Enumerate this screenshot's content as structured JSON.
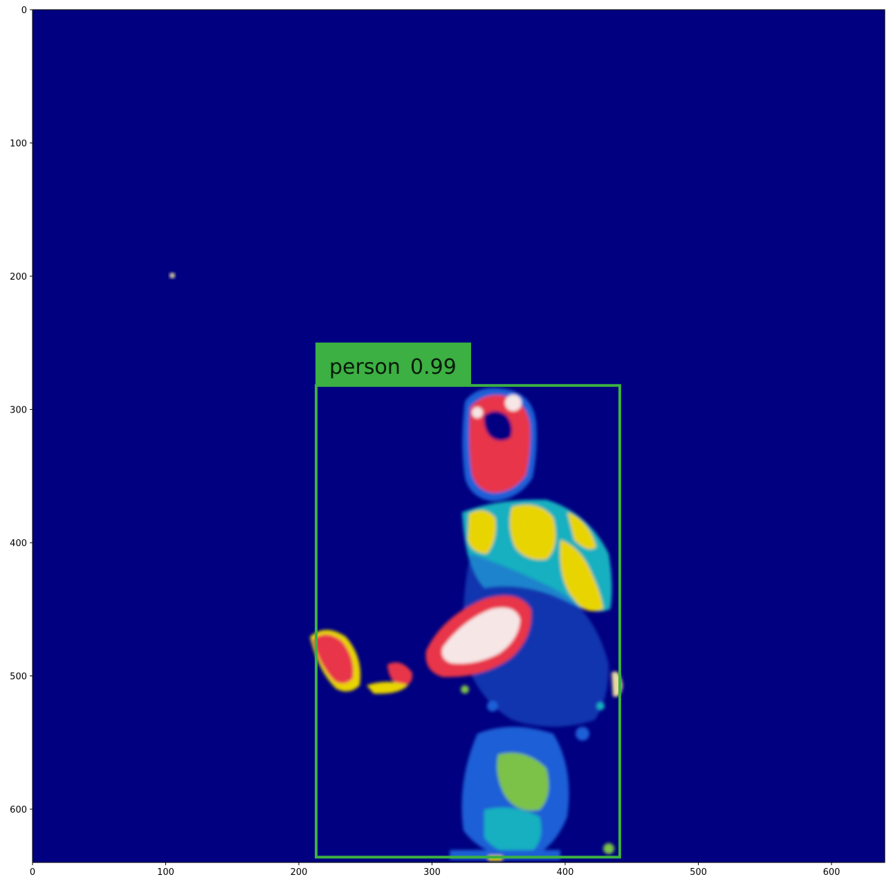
{
  "image": {
    "description_type": "thermal-colormap",
    "background_color": "#000080",
    "colors": {
      "cold": "#000080",
      "cool": "#1f5fd6",
      "mid": "#18b0c0",
      "warm": "#7cc24a",
      "hot_yellow": "#e8d400",
      "hot_red": "#e8344a",
      "hottest": "#f6e6e6"
    }
  },
  "axes": {
    "x_ticks": [
      "0",
      "100",
      "200",
      "300",
      "400",
      "500",
      "600"
    ],
    "y_ticks": [
      "0",
      "100",
      "200",
      "300",
      "400",
      "500",
      "600"
    ],
    "x_range": [
      0,
      640
    ],
    "y_range": [
      0,
      640
    ]
  },
  "detection": {
    "class_label": "person",
    "confidence": "0.99",
    "box_xyxy": [
      213,
      282,
      441,
      636
    ],
    "color": "#3cb043"
  }
}
